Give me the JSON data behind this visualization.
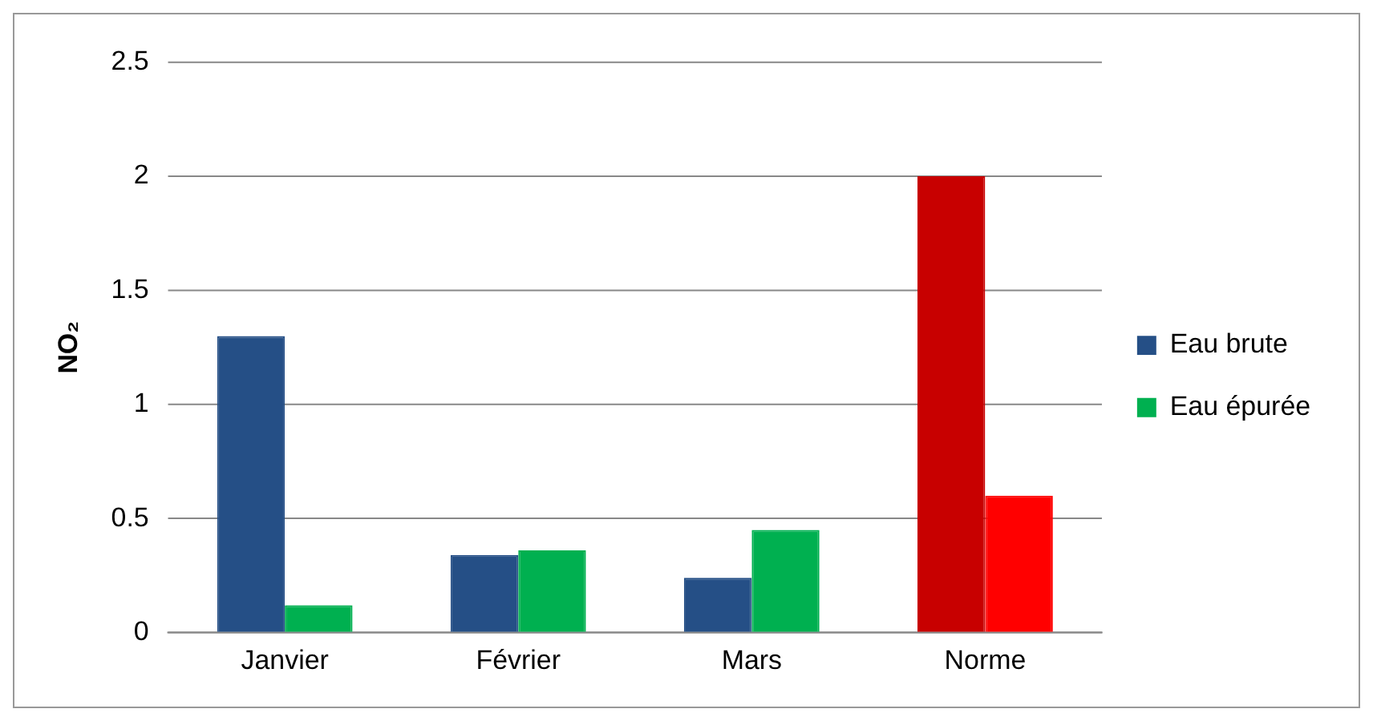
{
  "chart_data": {
    "type": "bar",
    "ylabel": "NO₂",
    "categories": [
      "Janvier",
      "Février",
      "Mars",
      "Norme"
    ],
    "series": [
      {
        "name": "Eau brute",
        "color": "#254f86",
        "colors": [
          "#254f86",
          "#254f86",
          "#254f86",
          "#c80000"
        ],
        "values": [
          1.3,
          0.34,
          0.24,
          2.0
        ]
      },
      {
        "name": "Eau épurée",
        "color": "#00b050",
        "colors": [
          "#00b050",
          "#00b050",
          "#00b050",
          "#ff0000"
        ],
        "values": [
          0.12,
          0.36,
          0.45,
          0.6
        ]
      }
    ],
    "ylim": [
      0,
      2.5
    ],
    "yticks": [
      0,
      0.5,
      1,
      1.5,
      2,
      2.5
    ],
    "grid": "y",
    "legend": "right"
  }
}
